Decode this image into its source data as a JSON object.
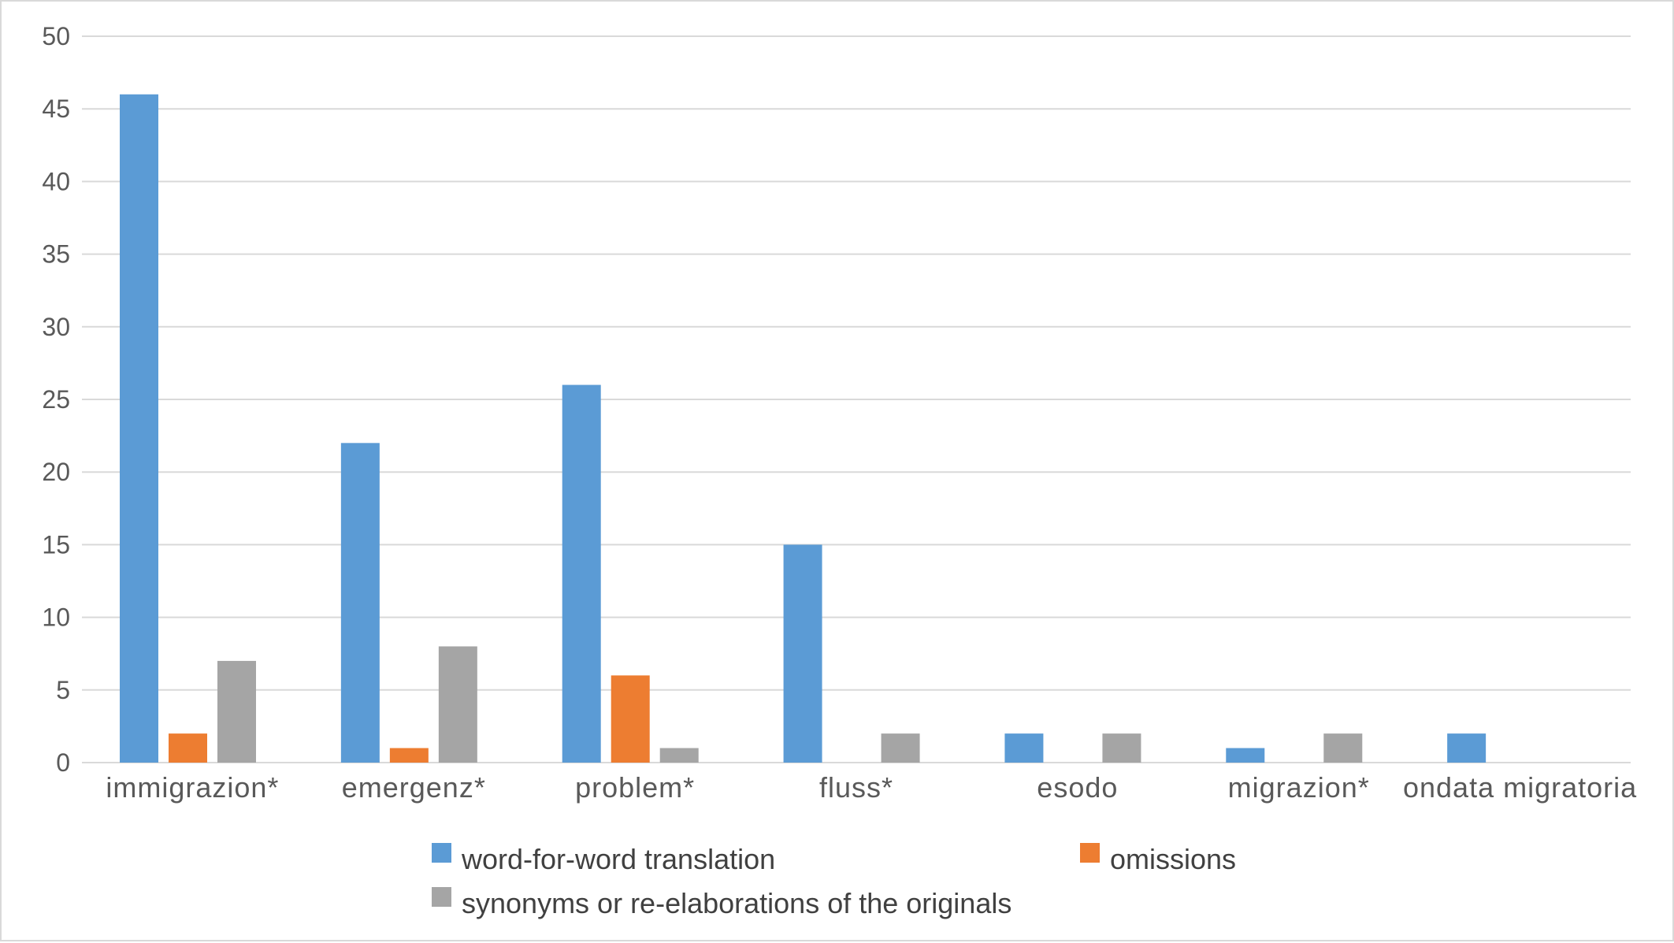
{
  "chart_data": {
    "type": "bar",
    "categories": [
      "immigrazion*",
      "emergenz*",
      "problem*",
      "fluss*",
      "esodo",
      "migrazion*",
      "ondata migratoria"
    ],
    "series": [
      {
        "name": "word-for-word translation",
        "values": [
          46,
          22,
          26,
          15,
          2,
          1,
          2
        ],
        "color": "#5b9bd5"
      },
      {
        "name": "omissions",
        "values": [
          2,
          1,
          6,
          0,
          0,
          0,
          0
        ],
        "color": "#ed7d31"
      },
      {
        "name": "synonyms or re-elaborations of the originals",
        "values": [
          7,
          8,
          1,
          2,
          2,
          2,
          0
        ],
        "color": "#a5a5a5"
      }
    ],
    "yticks": [
      "0",
      "5",
      "10",
      "15",
      "20",
      "25",
      "30",
      "35",
      "40",
      "45",
      "50"
    ],
    "ylim": [
      0,
      50
    ],
    "grid": true,
    "legend_position": "bottom",
    "title": "",
    "xlabel": "",
    "ylabel": ""
  }
}
